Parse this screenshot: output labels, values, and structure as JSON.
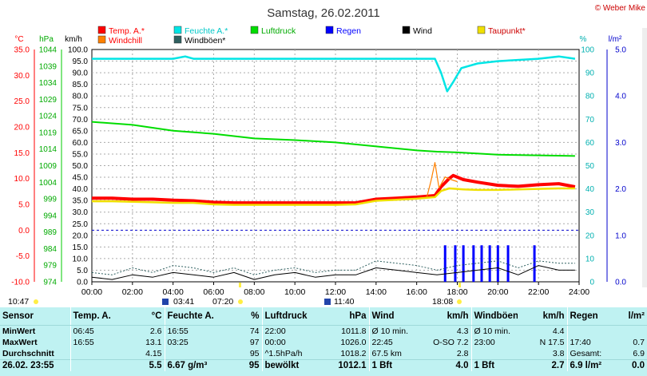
{
  "title": "Samstag, 26.02.2011",
  "copyright": "© Weber Mike",
  "legend": [
    {
      "name": "Temp. A.*",
      "color": "#ff0000"
    },
    {
      "name": "Feuchte A.*",
      "color": "#00e5e5"
    },
    {
      "name": "Luftdruck",
      "color": "#00dd00"
    },
    {
      "name": "Regen",
      "color": "#0000ff"
    },
    {
      "name": "Wind",
      "color": "#000000"
    },
    {
      "name": "Taupunkt*",
      "color": "#f0e000"
    },
    {
      "name": "Windchill",
      "color": "#ff8000"
    },
    {
      "name": "Windböen*",
      "color": "#2f6060"
    }
  ],
  "unit_labels": {
    "temp": "°C",
    "pressure": "hPa",
    "wind": "km/h",
    "humidity": "%",
    "rain": "l/m²"
  },
  "axis_ticks": {
    "temp": [
      "35.0",
      "30.0",
      "25.0",
      "20.0",
      "15.0",
      "10.0",
      "5.0",
      "0.0",
      "-5.0",
      "-10.0"
    ],
    "pressure": [
      "1044",
      "1039",
      "1034",
      "1029",
      "1024",
      "1019",
      "1014",
      "1009",
      "1004",
      "999",
      "994",
      "989",
      "984",
      "979",
      "974"
    ],
    "wind": [
      "100.0",
      "95.0",
      "90.0",
      "85.0",
      "80.0",
      "75.0",
      "70.0",
      "65.0",
      "60.0",
      "55.0",
      "50.0",
      "45.0",
      "40.0",
      "35.0",
      "30.0",
      "25.0",
      "20.0",
      "15.0",
      "10.0",
      "5.0",
      "0.0"
    ],
    "humidity": [
      "100",
      "90",
      "80",
      "70",
      "60",
      "50",
      "40",
      "30",
      "20",
      "10",
      "0"
    ],
    "rain": [
      "5.0",
      "4.0",
      "3.0",
      "2.0",
      "1.0",
      "0.0"
    ],
    "time": [
      "00:00",
      "02:00",
      "04:00",
      "06:00",
      "08:00",
      "10:00",
      "12:00",
      "14:00",
      "16:00",
      "18:00",
      "20:00",
      "22:00",
      "24:00"
    ]
  },
  "sun_markers": {
    "left": "10:47",
    "sunrise": "03:41",
    "sunrise2": "07:20",
    "noon": "11:40",
    "sunset": "18:08"
  },
  "chart_data": {
    "type": "line",
    "x_unit": "hours",
    "xlim": [
      0,
      24
    ],
    "series": [
      {
        "name": "Temp. A.*",
        "axis": "temp",
        "color": "#ff0000",
        "x": [
          0,
          1,
          2,
          3,
          4,
          5,
          6,
          7,
          8,
          9,
          10,
          11,
          12,
          13,
          14,
          15,
          16,
          16.9,
          17.2,
          17.6,
          17.8,
          18.3,
          19,
          20,
          21,
          22,
          23,
          23.8
        ],
        "y": [
          6.2,
          6.2,
          6.0,
          6.0,
          5.8,
          5.7,
          5.4,
          5.3,
          5.3,
          5.3,
          5.3,
          5.3,
          5.3,
          5.3,
          6.0,
          6.2,
          6.4,
          6.7,
          8.4,
          10.0,
          10.6,
          9.8,
          9.3,
          8.7,
          8.5,
          8.8,
          9.0,
          8.4
        ]
      },
      {
        "name": "Taupunkt*",
        "axis": "temp",
        "color": "#f0e000",
        "x": [
          0,
          1,
          2,
          3,
          4,
          5,
          6,
          7,
          8,
          9,
          10,
          11,
          12,
          13,
          14,
          15,
          16,
          16.9,
          17.2,
          17.6,
          18.3,
          19,
          20,
          21,
          22,
          23,
          23.8
        ],
        "y": [
          5.6,
          5.6,
          5.5,
          5.4,
          5.3,
          5.3,
          5.0,
          4.9,
          4.9,
          4.9,
          4.9,
          4.9,
          4.9,
          5.0,
          5.7,
          5.9,
          6.1,
          6.4,
          7.6,
          8.1,
          7.9,
          7.8,
          7.8,
          7.9,
          8.0,
          8.1,
          8.1
        ]
      },
      {
        "name": "Windchill",
        "axis": "temp",
        "color": "#ff8000",
        "x": [
          16.5,
          16.7,
          16.9,
          17.1,
          17.4,
          17.7,
          18.0
        ],
        "y": [
          6.4,
          9.5,
          13.1,
          8.2,
          10.3,
          9.8,
          9.4
        ]
      },
      {
        "name": "Feuchte A.*",
        "axis": "humidity",
        "color": "#00e5e5",
        "x": [
          0,
          2,
          4,
          4.6,
          5,
          8,
          10,
          12,
          14,
          15,
          16,
          16.9,
          17.2,
          17.5,
          17.8,
          18.2,
          19,
          20,
          22,
          23,
          23.8
        ],
        "y": [
          96,
          96,
          96,
          97,
          96,
          96,
          96,
          96,
          96,
          96,
          96,
          96,
          90,
          82,
          86,
          92,
          94,
          95,
          96,
          97,
          96
        ]
      },
      {
        "name": "Luftdruck",
        "axis": "pressure",
        "color": "#00dd00",
        "x": [
          0,
          2,
          4,
          6,
          8,
          10,
          12,
          14,
          16,
          17,
          18,
          20,
          22,
          23.8
        ],
        "y": [
          1022.2,
          1021.3,
          1019.5,
          1018.6,
          1017.2,
          1016.7,
          1016.0,
          1014.8,
          1013.6,
          1013.2,
          1013.0,
          1012.3,
          1012.1,
          1011.9
        ]
      },
      {
        "name": "Regen",
        "axis": "rain",
        "color": "#0000ff",
        "x": [
          17.4,
          17.9,
          18.3,
          18.8,
          19.2,
          19.6,
          20.0,
          20.5,
          21.8
        ],
        "y": [
          0.7,
          0.7,
          0.7,
          0.7,
          0.7,
          0.7,
          0.7,
          0.7,
          0.7
        ]
      },
      {
        "name": "Wind",
        "axis": "wind",
        "color": "#000000",
        "x": [
          0,
          1,
          2,
          3,
          4,
          5,
          6,
          7,
          8,
          9,
          10,
          11,
          12,
          13,
          14,
          15,
          16,
          17,
          18,
          19,
          20,
          21,
          22,
          23,
          23.8
        ],
        "y": [
          2,
          1,
          3,
          2,
          4,
          3,
          2,
          4,
          1,
          3,
          4,
          2,
          3,
          3,
          6,
          5,
          4,
          3,
          4,
          5,
          6,
          3,
          7,
          5,
          5
        ]
      },
      {
        "name": "Windböen*",
        "axis": "wind",
        "color": "#2f6060",
        "x": [
          0,
          1,
          2,
          3,
          4,
          5,
          6,
          7,
          8,
          9,
          10,
          11,
          12,
          13,
          14,
          15,
          16,
          17,
          18,
          19,
          20,
          21,
          22,
          23,
          23.8
        ],
        "y": [
          4,
          3,
          6,
          4,
          7,
          6,
          4,
          6,
          3,
          5,
          6,
          4,
          5,
          5,
          9,
          8,
          7,
          5,
          7,
          8,
          9,
          6,
          9,
          8,
          8
        ]
      }
    ],
    "reference_lines": [
      {
        "axis": "temp",
        "y": 0,
        "color": "#0000cc",
        "style": "dashed"
      }
    ]
  },
  "table": {
    "headers": [
      "Sensor",
      "Temp. A.",
      "°C",
      "Feuchte A.",
      "%",
      "Luftdruck",
      "hPa",
      "Wind",
      "km/h",
      "Windböen",
      "km/h",
      "Regen",
      "l/m²"
    ],
    "rows": [
      {
        "label": "MinWert",
        "cells": [
          "06:45",
          "2.6",
          "16:55",
          "74",
          "22:00",
          "1011.8",
          "Ø 10 min.",
          "4.3",
          "Ø 10 min.",
          "4.4",
          "",
          ""
        ]
      },
      {
        "label": "MaxWert",
        "cells": [
          "16:55",
          "13.1",
          "03:25",
          "97",
          "00:00",
          "1026.0",
          "22:45",
          "O-SO 7.2",
          "23:00",
          "N 17.5",
          "17:40",
          "0.7"
        ]
      },
      {
        "label": "Durchschnitt",
        "cells": [
          "",
          "4.15",
          "",
          "95",
          "^1.5hPa/h",
          "1018.2",
          "67.5 km",
          "2.8",
          "",
          "3.8",
          "Gesamt:",
          "6.9"
        ]
      },
      {
        "label": "26.02. 23:55",
        "cells": [
          "",
          "5.5",
          "6.67 g/m³",
          "95",
          "bewölkt",
          "1012.1",
          "1 Bft",
          "4.0",
          "1 Bft",
          "2.7",
          "6.9 l/m²",
          "0.0"
        ]
      }
    ]
  }
}
